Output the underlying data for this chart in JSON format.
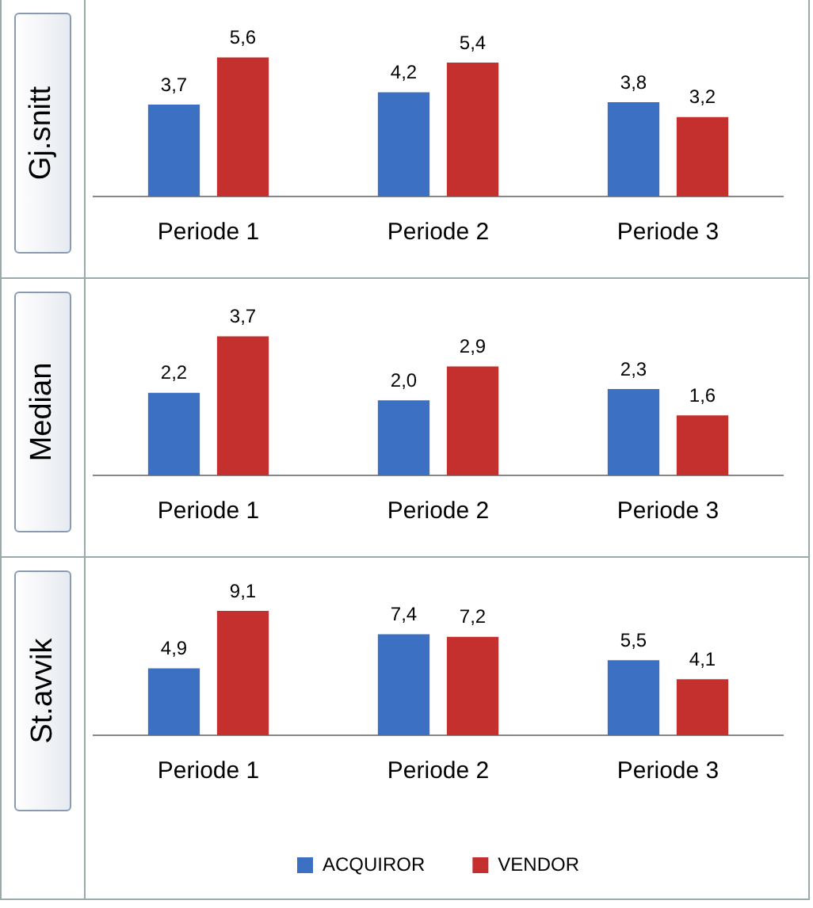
{
  "chart_data": [
    {
      "type": "bar",
      "ylabel": "Gj.snitt",
      "categories": [
        "Periode 1",
        "Periode 2",
        "Periode 3"
      ],
      "tick_labels": "x",
      "series": [
        {
          "color": "#3c70c2",
          "values": [
            3.7,
            4.2,
            3.8
          ],
          "value_labels": [
            "3,7",
            "4,2",
            "3,8"
          ]
        },
        {
          "color": "#c3302d",
          "values": [
            5.6,
            5.4,
            3.2
          ],
          "value_labels": [
            "5,6",
            "5,4",
            "3,2"
          ]
        }
      ]
    },
    {
      "type": "bar",
      "ylabel": "Median",
      "categories": [
        "Periode 1",
        "Periode 2",
        "Periode 3"
      ],
      "tick_labels": "x",
      "series": [
        {
          "color": "#3c70c2",
          "values": [
            2.2,
            2.0,
            2.3
          ],
          "value_labels": [
            "2,2",
            "2,0",
            "2,3"
          ]
        },
        {
          "color": "#c3302d",
          "values": [
            3.7,
            2.9,
            1.6
          ],
          "value_labels": [
            "3,7",
            "2,9",
            "1,6"
          ]
        }
      ]
    },
    {
      "type": "bar",
      "ylabel": "St.avvik",
      "categories": [
        "Periode 1",
        "Periode 2",
        "Periode 3"
      ],
      "tick_labels": "x",
      "legend": "bottom",
      "series": [
        {
          "name": "ACQUIROR",
          "color": "#3c70c2",
          "values": [
            4.9,
            7.4,
            5.5
          ],
          "value_labels": [
            "4,9",
            "7,4",
            "5,5"
          ]
        },
        {
          "name": "VENDOR",
          "color": "#c3302d",
          "values": [
            9.1,
            7.2,
            4.1
          ],
          "value_labels": [
            "9,1",
            "7,2",
            "4,1"
          ]
        }
      ]
    }
  ]
}
